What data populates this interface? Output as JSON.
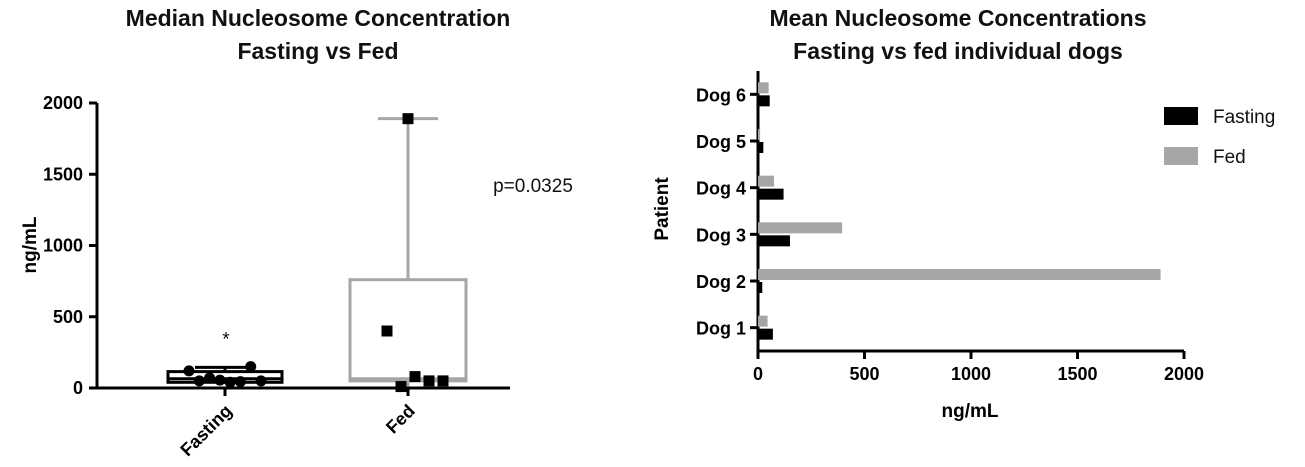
{
  "chart_data": [
    {
      "type": "box",
      "title": [
        "Median Nucleosome Concentration",
        "Fasting vs Fed"
      ],
      "xlabel": "",
      "ylabel": "ng/mL",
      "ylim": [
        0,
        2000
      ],
      "yticks": [
        0,
        500,
        1000,
        1500,
        2000
      ],
      "categories": [
        "Fasting",
        "Fed"
      ],
      "boxes": [
        {
          "name": "Fasting",
          "min": 30,
          "q1": 40,
          "median": 65,
          "q3": 115,
          "max": 145,
          "points": [
            120,
            50,
            70,
            55,
            40,
            45,
            150,
            50
          ],
          "marker": "circle",
          "outlier_label": "*"
        },
        {
          "name": "Fed",
          "min": 10,
          "q1": 50,
          "median": 65,
          "q3": 760,
          "max": 1890,
          "points": [
            1890,
            400,
            10,
            80,
            50,
            50
          ],
          "marker": "square"
        }
      ],
      "annotation": "p=0.0325"
    },
    {
      "type": "bar",
      "orientation": "horizontal",
      "title": [
        "Mean Nucleosome Concentrations",
        "Fasting vs fed individual dogs"
      ],
      "xlabel": "ng/mL",
      "ylabel": "Patient",
      "xlim": [
        0,
        2000
      ],
      "xticks": [
        0,
        500,
        1000,
        1500,
        2000
      ],
      "categories": [
        "Dog 1",
        "Dog 2",
        "Dog 3",
        "Dog 4",
        "Dog 5",
        "Dog 6"
      ],
      "series": [
        {
          "name": "Fasting",
          "color": "#000000",
          "values": [
            70,
            20,
            150,
            120,
            25,
            55
          ]
        },
        {
          "name": "Fed",
          "color": "#a6a6a6",
          "values": [
            45,
            1890,
            395,
            75,
            10,
            50
          ]
        }
      ],
      "legend_position": "right"
    }
  ]
}
